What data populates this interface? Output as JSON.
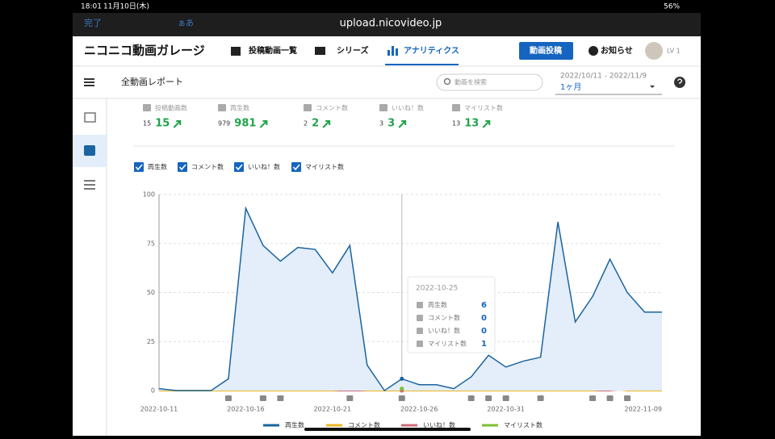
{
  "status_bar": {
    "time": "18:01",
    "date": "11月10日(木)",
    "battery": "56%"
  },
  "browser": {
    "done": "完了",
    "text_size": "ぁあ",
    "url": "upload.nicovideo.jp"
  },
  "header": {
    "logo": "ニコニコ動画ガレージ",
    "nav": [
      "投稿動画一覧",
      "シリーズ",
      "アナリティクス"
    ],
    "upload_button": "動画投稿",
    "notifications": "お知らせ",
    "level": "LV 1"
  },
  "toolbar": {
    "title": "全動画レポート",
    "search_placeholder": "動画を検索",
    "date_range": "2022/10/11 - 2022/11/9",
    "period": "1ヶ月"
  },
  "stats": [
    {
      "label": "投稿動画数",
      "previous": 15,
      "current": 15
    },
    {
      "label": "再生数",
      "previous": 979,
      "current": 981
    },
    {
      "label": "コメント数",
      "previous": 2,
      "current": 2
    },
    {
      "label": "いいね！数",
      "previous": 3,
      "current": 3
    },
    {
      "label": "マイリスト数",
      "previous": 13,
      "current": 13
    }
  ],
  "chart_data": {
    "type": "area",
    "categories": [
      "2022-10-11",
      null,
      null,
      null,
      null,
      "2022-10-16",
      null,
      null,
      null,
      null,
      "2022-10-21",
      null,
      null,
      null,
      null,
      "2022-10-26",
      null,
      null,
      null,
      null,
      "2022-10-31",
      null,
      null,
      null,
      null,
      null,
      null,
      null,
      null,
      "2022-11-09"
    ],
    "series": [
      {
        "name": "再生数",
        "color": "#1a64a0",
        "values": [
          1,
          0,
          0,
          0,
          6,
          93,
          74,
          66,
          73,
          72,
          60,
          74,
          13,
          0,
          6,
          3,
          3,
          1,
          7,
          18,
          12,
          15,
          17,
          86,
          35,
          48,
          67,
          50,
          40,
          40
        ]
      },
      {
        "name": "コメント数",
        "color": "#e8b623",
        "values": [
          0,
          0,
          0,
          0,
          0,
          0,
          0,
          0,
          0,
          0,
          0,
          1,
          0,
          0,
          0,
          0,
          0,
          0,
          0,
          0,
          0,
          0,
          0,
          0,
          0,
          0,
          1,
          0,
          0,
          0
        ]
      },
      {
        "name": "いいね！数",
        "color": "#d06a7a",
        "values": [
          0,
          0,
          0,
          0,
          0,
          0,
          0,
          0,
          0,
          0,
          0,
          0,
          0,
          0,
          0,
          0,
          0,
          0,
          1,
          1,
          0,
          0,
          0,
          0,
          0,
          0,
          0,
          1,
          0,
          0
        ]
      },
      {
        "name": "マイリスト数",
        "color": "#7ac12f",
        "values": [
          0,
          0,
          0,
          0,
          0,
          0,
          0,
          3,
          1,
          0,
          1,
          2,
          0,
          0,
          1,
          0,
          0,
          0,
          1,
          0,
          1,
          0,
          2,
          0,
          0,
          0,
          2,
          1,
          0,
          0
        ]
      }
    ],
    "ylim": [
      0,
      100
    ],
    "yticks": [
      0,
      25,
      50,
      75,
      100
    ],
    "grid": true
  },
  "tooltip": {
    "date": "2022-10-25",
    "index": 14
  }
}
